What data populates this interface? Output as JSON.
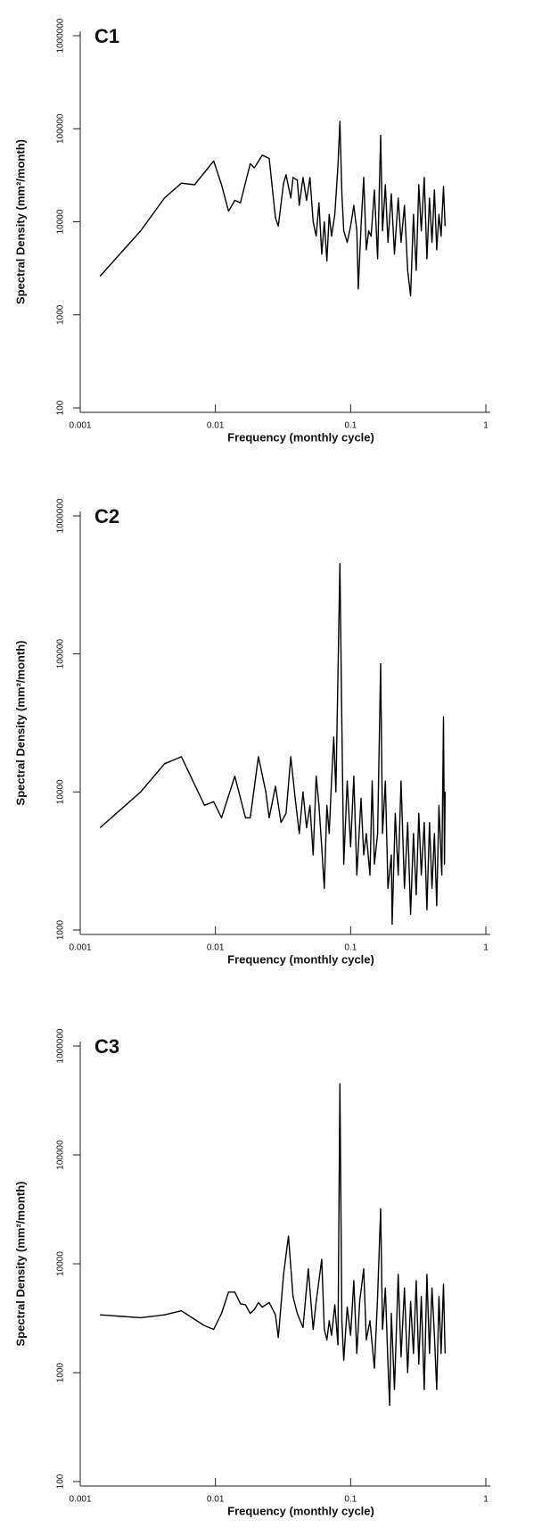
{
  "chart_data": [
    {
      "type": "line",
      "title": "C1",
      "xlabel": "Frequency (monthly cycle)",
      "ylabel": "Spectral Density (mm²/month)",
      "xscale": "log",
      "yscale": "log",
      "color": "#000000",
      "xlim": [
        0.001,
        1
      ],
      "xticks": [
        0.001,
        0.01,
        0.1,
        1
      ],
      "ylim": [
        100,
        1000000
      ],
      "yticks": [
        100,
        1000,
        10000,
        100000,
        1000000
      ],
      "x": [
        0.0014,
        0.0028,
        0.0042,
        0.0056,
        0.007,
        0.0097,
        0.0111,
        0.0125,
        0.0139,
        0.0153,
        0.0181,
        0.0194,
        0.0222,
        0.025,
        0.0278,
        0.0292,
        0.0319,
        0.0333,
        0.0361,
        0.0375,
        0.0403,
        0.0417,
        0.0444,
        0.0472,
        0.05,
        0.0528,
        0.0556,
        0.0583,
        0.0611,
        0.0639,
        0.0667,
        0.0694,
        0.0722,
        0.0764,
        0.0806,
        0.0833,
        0.0861,
        0.0889,
        0.0944,
        0.1,
        0.1056,
        0.1111,
        0.1139,
        0.1194,
        0.125,
        0.1306,
        0.1361,
        0.1417,
        0.15,
        0.1583,
        0.1667,
        0.1722,
        0.1806,
        0.1889,
        0.2,
        0.2111,
        0.225,
        0.2361,
        0.25,
        0.2639,
        0.2778,
        0.2917,
        0.3056,
        0.3194,
        0.3333,
        0.35,
        0.3667,
        0.3833,
        0.4,
        0.4167,
        0.4333,
        0.45,
        0.4667,
        0.4861,
        0.5
      ],
      "values": [
        2600,
        8000,
        18000,
        26000,
        25000,
        45000,
        25000,
        13000,
        17000,
        16000,
        42000,
        38000,
        52000,
        48000,
        11000,
        9000,
        26000,
        32000,
        18000,
        30000,
        28000,
        15000,
        30000,
        17000,
        30000,
        10000,
        7000,
        16000,
        4500,
        10000,
        3800,
        12000,
        7000,
        12000,
        40000,
        120000,
        20000,
        8000,
        6000,
        9000,
        15000,
        8000,
        1900,
        9000,
        30000,
        5000,
        8000,
        7000,
        22000,
        4000,
        85000,
        8000,
        25000,
        6000,
        20000,
        4500,
        18000,
        6000,
        15000,
        3000,
        1600,
        12000,
        3000,
        25000,
        8000,
        30000,
        4000,
        18000,
        6000,
        22000,
        5000,
        12000,
        7000,
        24000,
        9000
      ]
    },
    {
      "type": "line",
      "title": "C2",
      "xlabel": "Frequency (monthly cycle)",
      "ylabel": "Spectral Density (mm²/month)",
      "xscale": "log",
      "yscale": "log",
      "color": "#000000",
      "xlim": [
        0.001,
        1
      ],
      "xticks": [
        0.001,
        0.01,
        0.1,
        1
      ],
      "ylim": [
        1000,
        1000000
      ],
      "yticks": [
        1000,
        10000,
        100000,
        1000000
      ],
      "x": [
        0.0014,
        0.0028,
        0.0042,
        0.0056,
        0.0083,
        0.0097,
        0.0111,
        0.0139,
        0.0167,
        0.0181,
        0.0208,
        0.0236,
        0.025,
        0.0278,
        0.0306,
        0.0333,
        0.0361,
        0.0389,
        0.0417,
        0.0444,
        0.0472,
        0.05,
        0.0528,
        0.0556,
        0.0583,
        0.0611,
        0.0639,
        0.0667,
        0.0694,
        0.0722,
        0.075,
        0.0778,
        0.0833,
        0.0861,
        0.0889,
        0.0944,
        0.1,
        0.1056,
        0.1111,
        0.1194,
        0.125,
        0.1306,
        0.1389,
        0.1444,
        0.15,
        0.1583,
        0.1667,
        0.1722,
        0.1806,
        0.1889,
        0.2,
        0.2028,
        0.2139,
        0.225,
        0.2361,
        0.25,
        0.2639,
        0.2778,
        0.2917,
        0.3056,
        0.3194,
        0.3333,
        0.35,
        0.3667,
        0.3833,
        0.4,
        0.4167,
        0.4333,
        0.45,
        0.4722,
        0.4861,
        0.4944,
        0.5
      ],
      "values": [
        5500,
        10000,
        16000,
        18000,
        8000,
        8500,
        6500,
        13000,
        6500,
        6500,
        18000,
        10000,
        6500,
        11000,
        6000,
        7000,
        18000,
        9000,
        5000,
        10000,
        5500,
        8000,
        3500,
        13000,
        8000,
        4000,
        2000,
        8000,
        5000,
        12000,
        25000,
        10000,
        450000,
        30000,
        3000,
        12000,
        4000,
        13000,
        2500,
        9000,
        3500,
        5000,
        2500,
        12000,
        3000,
        5000,
        85000,
        5000,
        12000,
        2000,
        3500,
        1100,
        7000,
        2500,
        12000,
        2000,
        6000,
        1300,
        5000,
        1800,
        7000,
        2500,
        6000,
        1400,
        6000,
        2000,
        5000,
        1500,
        8000,
        2500,
        35000,
        3000,
        10000
      ]
    },
    {
      "type": "line",
      "title": "C3",
      "xlabel": "Frequency (monthly cycle)",
      "ylabel": "Spectral Density (mm²/month)",
      "xscale": "log",
      "yscale": "log",
      "color": "#000000",
      "xlim": [
        0.001,
        1
      ],
      "xticks": [
        0.001,
        0.01,
        0.1,
        1
      ],
      "ylim": [
        100,
        1000000
      ],
      "yticks": [
        100,
        1000,
        10000,
        100000,
        1000000
      ],
      "x": [
        0.0014,
        0.0028,
        0.0042,
        0.0056,
        0.0083,
        0.0097,
        0.0111,
        0.0125,
        0.0139,
        0.0153,
        0.0167,
        0.0181,
        0.0194,
        0.0208,
        0.0222,
        0.025,
        0.0278,
        0.0292,
        0.0319,
        0.0347,
        0.0375,
        0.0403,
        0.0444,
        0.0486,
        0.0528,
        0.0556,
        0.0611,
        0.0639,
        0.0667,
        0.0694,
        0.0722,
        0.0764,
        0.0806,
        0.0833,
        0.0861,
        0.0889,
        0.0944,
        0.1,
        0.1056,
        0.1111,
        0.1167,
        0.125,
        0.1306,
        0.1389,
        0.15,
        0.1583,
        0.1667,
        0.1722,
        0.1806,
        0.1889,
        0.1944,
        0.2,
        0.2111,
        0.225,
        0.2361,
        0.25,
        0.2639,
        0.2778,
        0.2917,
        0.3056,
        0.3194,
        0.3333,
        0.35,
        0.3667,
        0.3833,
        0.4,
        0.4167,
        0.4333,
        0.45,
        0.4667,
        0.4861,
        0.5
      ],
      "values": [
        3400,
        3200,
        3400,
        3700,
        2700,
        2500,
        3500,
        5500,
        5500,
        4300,
        4200,
        3500,
        3800,
        4400,
        4000,
        4400,
        3400,
        2100,
        8000,
        18000,
        5000,
        3500,
        2600,
        9000,
        2500,
        4500,
        11000,
        2500,
        2000,
        3000,
        2200,
        4200,
        1800,
        450000,
        3000,
        1300,
        4000,
        2200,
        7000,
        1500,
        4500,
        9000,
        2000,
        3000,
        1100,
        5000,
        32000,
        2500,
        6000,
        1200,
        500,
        3500,
        700,
        8000,
        1400,
        6000,
        1000,
        4500,
        1500,
        7000,
        1200,
        5000,
        700,
        8000,
        1500,
        6000,
        2200,
        700,
        5000,
        1500,
        6500,
        1500
      ]
    }
  ]
}
